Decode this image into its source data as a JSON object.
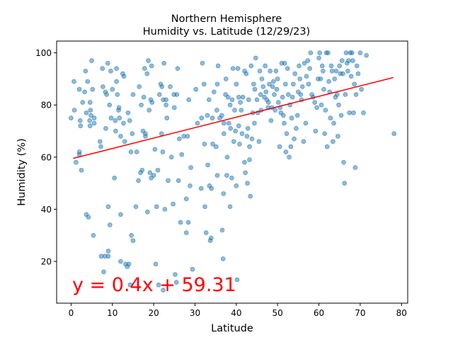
{
  "chart_data": {
    "type": "scatter",
    "title": "Northern Hemisphere",
    "subtitle": "Humidity vs. Latitude (12/29/23)",
    "xlabel": "Latitude",
    "ylabel": "Humidity (%)",
    "xlim": [
      -3.5,
      81.5
    ],
    "ylim": [
      4,
      104.5
    ],
    "xticks": [
      "0",
      "10",
      "20",
      "30",
      "40",
      "50",
      "60",
      "70",
      "80"
    ],
    "yticks": [
      "20",
      "40",
      "60",
      "80",
      "100"
    ],
    "grid": false,
    "marker_color": "#1f77b4",
    "line_color": "#ff0000",
    "regression": {
      "equation": "y = 0.4x + 59.31",
      "slope": 0.4,
      "intercept": 59.31,
      "x_range": [
        0.5,
        78
      ]
    },
    "points": [
      [
        0,
        75
      ],
      [
        0.7,
        89
      ],
      [
        0.8,
        78
      ],
      [
        1.2,
        58
      ],
      [
        2,
        61
      ],
      [
        2,
        62
      ],
      [
        2.2,
        74
      ],
      [
        2.5,
        55
      ],
      [
        2.3,
        72
      ],
      [
        2,
        86
      ],
      [
        2.8,
        81
      ],
      [
        3.3,
        85
      ],
      [
        3.5,
        93
      ],
      [
        3.7,
        77
      ],
      [
        3.7,
        38
      ],
      [
        4,
        89
      ],
      [
        4.2,
        37
      ],
      [
        4.6,
        72
      ],
      [
        4.6,
        81
      ],
      [
        4.7,
        78
      ],
      [
        4.8,
        76
      ],
      [
        4.5,
        74
      ],
      [
        5,
        97
      ],
      [
        5.2,
        86
      ],
      [
        5.4,
        30
      ],
      [
        5.6,
        75
      ],
      [
        5.6,
        73
      ],
      [
        7,
        66
      ],
      [
        7.2,
        64
      ],
      [
        7.3,
        22
      ],
      [
        7.6,
        94
      ],
      [
        7.7,
        87
      ],
      [
        7.9,
        16
      ],
      [
        8.2,
        22
      ],
      [
        8.3,
        85
      ],
      [
        8.4,
        71
      ],
      [
        8.6,
        84
      ],
      [
        8.9,
        96
      ],
      [
        9,
        41
      ],
      [
        9,
        22
      ],
      [
        9,
        24
      ],
      [
        9.3,
        80
      ],
      [
        9.4,
        34
      ],
      [
        9.6,
        93
      ],
      [
        9.7,
        75
      ],
      [
        10,
        86
      ],
      [
        10.5,
        52
      ],
      [
        10.7,
        74
      ],
      [
        10.8,
        70
      ],
      [
        11,
        89
      ],
      [
        11,
        94
      ],
      [
        11.2,
        84
      ],
      [
        11.5,
        78
      ],
      [
        11.6,
        79
      ],
      [
        11.7,
        75
      ],
      [
        12,
        38
      ],
      [
        12,
        68
      ],
      [
        12,
        20
      ],
      [
        12.5,
        92
      ],
      [
        12.7,
        73
      ],
      [
        12.8,
        91
      ],
      [
        13,
        66
      ],
      [
        13.2,
        19
      ],
      [
        13.6,
        18
      ],
      [
        13.8,
        77
      ],
      [
        14,
        19
      ],
      [
        14.2,
        74
      ],
      [
        14.3,
        11
      ],
      [
        14.5,
        62
      ],
      [
        14.6,
        30
      ],
      [
        14.8,
        69
      ],
      [
        15,
        28
      ],
      [
        15,
        84
      ],
      [
        15.7,
        41
      ],
      [
        15.9,
        62
      ],
      [
        16.3,
        51
      ],
      [
        16.5,
        87
      ],
      [
        16.8,
        54
      ],
      [
        17,
        80
      ],
      [
        17.2,
        55
      ],
      [
        17.4,
        70
      ],
      [
        17.6,
        83
      ],
      [
        17.8,
        94
      ],
      [
        18,
        69
      ],
      [
        18,
        68
      ],
      [
        18.4,
        92
      ],
      [
        18.5,
        39
      ],
      [
        18.7,
        97
      ],
      [
        18.9,
        78
      ],
      [
        19.1,
        54
      ],
      [
        19.3,
        82
      ],
      [
        19.4,
        52
      ],
      [
        19.5,
        95
      ],
      [
        19.6,
        81
      ],
      [
        20,
        53
      ],
      [
        20.3,
        63
      ],
      [
        20.5,
        19
      ],
      [
        20.7,
        41
      ],
      [
        21,
        55
      ],
      [
        21.2,
        11
      ],
      [
        21.4,
        84
      ],
      [
        21.7,
        88
      ],
      [
        21.9,
        69
      ],
      [
        22,
        87
      ],
      [
        22.2,
        62
      ],
      [
        22.3,
        82
      ],
      [
        22.3,
        9
      ],
      [
        22.5,
        96
      ],
      [
        22.7,
        40
      ],
      [
        23,
        80
      ],
      [
        23,
        82
      ],
      [
        23.2,
        75
      ],
      [
        23.5,
        51
      ],
      [
        24,
        87
      ],
      [
        24.3,
        60
      ],
      [
        24.7,
        42
      ],
      [
        24.9,
        84
      ],
      [
        25,
        79
      ],
      [
        25.2,
        15
      ],
      [
        25.5,
        12
      ],
      [
        25.6,
        84
      ],
      [
        25.8,
        94
      ],
      [
        26,
        51
      ],
      [
        26.2,
        67
      ],
      [
        26.5,
        35
      ],
      [
        26.8,
        61
      ],
      [
        27.3,
        68
      ],
      [
        27.9,
        31
      ],
      [
        27.9,
        44
      ],
      [
        28.2,
        68
      ],
      [
        28.4,
        35
      ],
      [
        28.5,
        82
      ],
      [
        28.8,
        49
      ],
      [
        29,
        56
      ],
      [
        29.4,
        17
      ],
      [
        30.2,
        86
      ],
      [
        30.6,
        73
      ],
      [
        31.5,
        48
      ],
      [
        31.6,
        75
      ],
      [
        31.8,
        96
      ],
      [
        32.2,
        88
      ],
      [
        32.3,
        65
      ],
      [
        32.4,
        41
      ],
      [
        32.7,
        31
      ],
      [
        33,
        76
      ],
      [
        33.1,
        57
      ],
      [
        33.4,
        82
      ],
      [
        33.5,
        49
      ],
      [
        33.7,
        28
      ],
      [
        33.9,
        29
      ],
      [
        34,
        48
      ],
      [
        34.2,
        75
      ],
      [
        34.3,
        65
      ],
      [
        34.6,
        85
      ],
      [
        35.1,
        64
      ],
      [
        35.3,
        78
      ],
      [
        35.4,
        88
      ],
      [
        35.4,
        53
      ],
      [
        35.6,
        95
      ],
      [
        36,
        75
      ],
      [
        36.5,
        76
      ],
      [
        36.6,
        32
      ],
      [
        36.8,
        21
      ],
      [
        36.9,
        46
      ],
      [
        37,
        73
      ],
      [
        37,
        69
      ],
      [
        37.4,
        84
      ],
      [
        37.5,
        90
      ],
      [
        37.7,
        53
      ],
      [
        37.8,
        60
      ],
      [
        38,
        83
      ],
      [
        38.2,
        73
      ],
      [
        38.5,
        41
      ],
      [
        38.5,
        80
      ],
      [
        38.6,
        71
      ],
      [
        38.9,
        52
      ],
      [
        39,
        82
      ],
      [
        39.2,
        94
      ],
      [
        39.4,
        66
      ],
      [
        39.6,
        78
      ],
      [
        39.8,
        70
      ],
      [
        40,
        88
      ],
      [
        40,
        49
      ],
      [
        40.2,
        13
      ],
      [
        40.4,
        94
      ],
      [
        40.6,
        83
      ],
      [
        40.6,
        72
      ],
      [
        40.8,
        65
      ],
      [
        41,
        81
      ],
      [
        41.2,
        78
      ],
      [
        41.4,
        69
      ],
      [
        41.6,
        83
      ],
      [
        42,
        58
      ],
      [
        42,
        93
      ],
      [
        42.2,
        54
      ],
      [
        42.4,
        92
      ],
      [
        42.6,
        68
      ],
      [
        42.7,
        50
      ],
      [
        42.8,
        71
      ],
      [
        43,
        82
      ],
      [
        43.2,
        59
      ],
      [
        43.2,
        64
      ],
      [
        43.4,
        45
      ],
      [
        43.6,
        95
      ],
      [
        43.8,
        67
      ],
      [
        44,
        77
      ],
      [
        44.2,
        88
      ],
      [
        44.4,
        73
      ],
      [
        44.5,
        86
      ],
      [
        44.7,
        98
      ],
      [
        45,
        82
      ],
      [
        45.2,
        77
      ],
      [
        45.5,
        66
      ],
      [
        45.7,
        93
      ],
      [
        45.9,
        84
      ],
      [
        46,
        78
      ],
      [
        46.2,
        90
      ],
      [
        46.5,
        87
      ],
      [
        46.8,
        83
      ],
      [
        47,
        95
      ],
      [
        47.2,
        85
      ],
      [
        47.4,
        82
      ],
      [
        47.7,
        79
      ],
      [
        47.8,
        81
      ],
      [
        48,
        88
      ],
      [
        48.2,
        93
      ],
      [
        48.4,
        74
      ],
      [
        48.6,
        79
      ],
      [
        48.8,
        87
      ],
      [
        49,
        89
      ],
      [
        49.2,
        84
      ],
      [
        49.4,
        78
      ],
      [
        49.6,
        93
      ],
      [
        49.8,
        86
      ],
      [
        50,
        90
      ],
      [
        50.2,
        81
      ],
      [
        50.5,
        64
      ],
      [
        50.6,
        79
      ],
      [
        50.8,
        77
      ],
      [
        51,
        96
      ],
      [
        51.2,
        83
      ],
      [
        51.4,
        76
      ],
      [
        51.6,
        73
      ],
      [
        51.7,
        96
      ],
      [
        51.9,
        88
      ],
      [
        52,
        62
      ],
      [
        52.2,
        69
      ],
      [
        52.4,
        94
      ],
      [
        52.6,
        84
      ],
      [
        52.8,
        60
      ],
      [
        53,
        80
      ],
      [
        53.2,
        64
      ],
      [
        53.4,
        75
      ],
      [
        53.6,
        83
      ],
      [
        53.8,
        88
      ],
      [
        54,
        67
      ],
      [
        54.2,
        92
      ],
      [
        54.5,
        71
      ],
      [
        54.8,
        76
      ],
      [
        55,
        85
      ],
      [
        55.2,
        95
      ],
      [
        55.4,
        90
      ],
      [
        55.6,
        84
      ],
      [
        55.8,
        82
      ],
      [
        56,
        87
      ],
      [
        56.3,
        66
      ],
      [
        56.5,
        96
      ],
      [
        56.8,
        73
      ],
      [
        57,
        91
      ],
      [
        57.3,
        97
      ],
      [
        57.5,
        88
      ],
      [
        57.8,
        94
      ],
      [
        58,
        100
      ],
      [
        58.3,
        84
      ],
      [
        58.6,
        83
      ],
      [
        59,
        81
      ],
      [
        59.2,
        70
      ],
      [
        59.5,
        79
      ],
      [
        59.8,
        90
      ],
      [
        60,
        98
      ],
      [
        60.2,
        100
      ],
      [
        60.4,
        90
      ],
      [
        60.6,
        80
      ],
      [
        60.8,
        95
      ],
      [
        61,
        93
      ],
      [
        61.2,
        86
      ],
      [
        61.4,
        69
      ],
      [
        61.6,
        78
      ],
      [
        61.8,
        100
      ],
      [
        62,
        64
      ],
      [
        62.2,
        100
      ],
      [
        62.4,
        89
      ],
      [
        62.6,
        85
      ],
      [
        62.8,
        75
      ],
      [
        63,
        95
      ],
      [
        63.2,
        93
      ],
      [
        63.4,
        66
      ],
      [
        63.6,
        73
      ],
      [
        63.8,
        90
      ],
      [
        64,
        83
      ],
      [
        64.2,
        93
      ],
      [
        64.4,
        84
      ],
      [
        64.6,
        68
      ],
      [
        64.8,
        80
      ],
      [
        65,
        95
      ],
      [
        65.2,
        92
      ],
      [
        65.4,
        76
      ],
      [
        65.6,
        97
      ],
      [
        65.8,
        92
      ],
      [
        66,
        58
      ],
      [
        66.2,
        50
      ],
      [
        66.4,
        84
      ],
      [
        66.6,
        100
      ],
      [
        66.8,
        96
      ],
      [
        67,
        93
      ],
      [
        67.2,
        97
      ],
      [
        67.4,
        77
      ],
      [
        67.6,
        100
      ],
      [
        67.8,
        91
      ],
      [
        68,
        100
      ],
      [
        68.2,
        97
      ],
      [
        68.4,
        77
      ],
      [
        68.6,
        88
      ],
      [
        68.8,
        56
      ],
      [
        69,
        84
      ],
      [
        69.2,
        95
      ],
      [
        69.5,
        92
      ],
      [
        70,
        100
      ],
      [
        70.3,
        86
      ],
      [
        70.8,
        77
      ],
      [
        71.5,
        99
      ],
      [
        78.2,
        69
      ]
    ]
  }
}
